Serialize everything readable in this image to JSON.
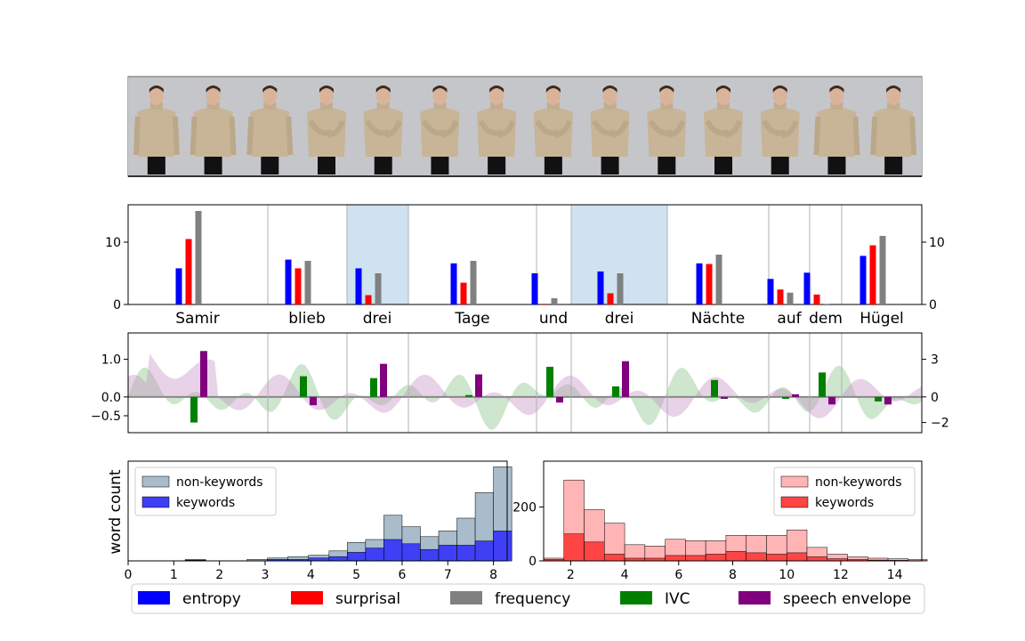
{
  "frames_strip": {
    "count": 14
  },
  "words": [
    "Samir",
    "blieb",
    "drei",
    "Tage",
    "und",
    "drei",
    "Nächte",
    "auf",
    "dem",
    "Hügel"
  ],
  "legend": [
    {
      "label": "entropy",
      "color": "#0000ff"
    },
    {
      "label": "surprisal",
      "color": "#ff0000"
    },
    {
      "label": "frequency",
      "color": "#808080"
    },
    {
      "label": "IVC",
      "color": "#008000"
    },
    {
      "label": "speech envelope",
      "color": "#800080"
    }
  ],
  "chart_data": [
    {
      "type": "bar",
      "categories": [
        "Samir",
        "blieb",
        "drei",
        "Tage",
        "und",
        "drei",
        "Nächte",
        "auf",
        "dem",
        "Hügel"
      ],
      "keyword_highlight": [
        "drei",
        "drei"
      ],
      "series": [
        {
          "name": "entropy",
          "values": [
            5.8,
            7.2,
            5.8,
            6.6,
            5.0,
            5.3,
            6.6,
            4.1,
            5.1,
            7.8
          ]
        },
        {
          "name": "surprisal",
          "values": [
            10.5,
            5.8,
            1.5,
            3.5,
            0.1,
            1.8,
            6.5,
            2.4,
            1.6,
            9.5
          ]
        },
        {
          "name": "frequency",
          "values": [
            15.0,
            7.0,
            5.0,
            7.0,
            1.0,
            5.0,
            8.0,
            1.9,
            0.1,
            11.0
          ]
        }
      ],
      "left_yticks": [
        "0",
        "10"
      ],
      "right_yticks": [
        "0",
        "10"
      ],
      "ylim": [
        0,
        16
      ]
    },
    {
      "type": "bar",
      "categories": [
        "Samir",
        "blieb",
        "drei",
        "Tage",
        "und",
        "drei",
        "Nächte",
        "auf",
        "dem",
        "Hügel"
      ],
      "series": [
        {
          "name": "IVC",
          "values": [
            -0.68,
            0.55,
            0.5,
            0.05,
            0.8,
            0.28,
            0.45,
            -0.05,
            0.65,
            -0.12
          ]
        },
        {
          "name": "speech envelope",
          "values": [
            1.22,
            -0.22,
            0.88,
            0.6,
            -0.15,
            0.95,
            -0.05,
            0.07,
            -0.2,
            -0.2
          ]
        }
      ],
      "left_yticks": [
        "1.0",
        "0.0",
        "−0.5"
      ],
      "right_yticks": [
        "3",
        "0",
        "−2"
      ],
      "ylim": [
        -0.95,
        1.7
      ]
    },
    {
      "type": "bar",
      "subtype": "stacked-histogram",
      "xlim": [
        0,
        8.3
      ],
      "bins": [
        [
          1.25,
          1.7
        ],
        [
          1.7,
          2.15
        ],
        [
          2.15,
          2.6
        ],
        [
          2.6,
          3.05
        ],
        [
          3.05,
          3.5
        ],
        [
          3.5,
          3.95
        ],
        [
          3.95,
          4.4
        ],
        [
          4.4,
          4.8
        ],
        [
          4.8,
          5.2
        ],
        [
          5.2,
          5.6
        ],
        [
          5.6,
          6.0
        ],
        [
          6.0,
          6.4
        ],
        [
          6.4,
          6.8
        ],
        [
          6.8,
          7.2
        ],
        [
          7.2,
          7.6
        ],
        [
          7.6,
          8.0
        ],
        [
          8.0,
          8.4
        ]
      ],
      "series": [
        {
          "name": "non-keywords",
          "values": [
            1,
            0,
            0,
            1,
            2,
            3,
            4,
            7,
            13,
            15,
            32,
            24,
            17,
            21,
            30,
            48,
            66
          ]
        },
        {
          "name": "keywords",
          "values": [
            0.5,
            0,
            0,
            0,
            1,
            1,
            2,
            3,
            6,
            9,
            15,
            12,
            8,
            11,
            11,
            14,
            21
          ]
        }
      ],
      "xticks": [
        "0",
        "1",
        "2",
        "3",
        "4",
        "5",
        "6",
        "7",
        "8"
      ],
      "ylabel": "word count",
      "legend_position": "top-left",
      "ymax": 70
    },
    {
      "type": "bar",
      "subtype": "stacked-histogram",
      "xlim": [
        1.0,
        15.0
      ],
      "bins": [
        [
          1.0,
          1.75
        ],
        [
          1.75,
          2.5
        ],
        [
          2.5,
          3.25
        ],
        [
          3.25,
          4.0
        ],
        [
          4.0,
          4.75
        ],
        [
          4.75,
          5.5
        ],
        [
          5.5,
          6.25
        ],
        [
          6.25,
          7.0
        ],
        [
          7.0,
          7.75
        ],
        [
          7.75,
          8.5
        ],
        [
          8.5,
          9.25
        ],
        [
          9.25,
          10.0
        ],
        [
          10.0,
          10.75
        ],
        [
          10.75,
          11.5
        ],
        [
          11.5,
          12.25
        ],
        [
          12.25,
          13.0
        ],
        [
          13.0,
          13.75
        ],
        [
          13.75,
          14.5
        ],
        [
          14.5,
          15.2
        ]
      ],
      "series": [
        {
          "name": "non-keywords",
          "values": [
            10,
            300,
            190,
            140,
            60,
            55,
            80,
            75,
            75,
            95,
            95,
            95,
            115,
            50,
            25,
            15,
            10,
            8,
            5
          ]
        },
        {
          "name": "keywords",
          "values": [
            5,
            100,
            70,
            25,
            10,
            10,
            20,
            20,
            25,
            35,
            30,
            25,
            30,
            15,
            8,
            5,
            3,
            2,
            1
          ]
        }
      ],
      "xticks": [
        "2",
        "4",
        "6",
        "8",
        "10",
        "12",
        "14"
      ],
      "right_yticks": [
        "0",
        "200"
      ],
      "legend_position": "top-right",
      "ymax": 370
    }
  ]
}
